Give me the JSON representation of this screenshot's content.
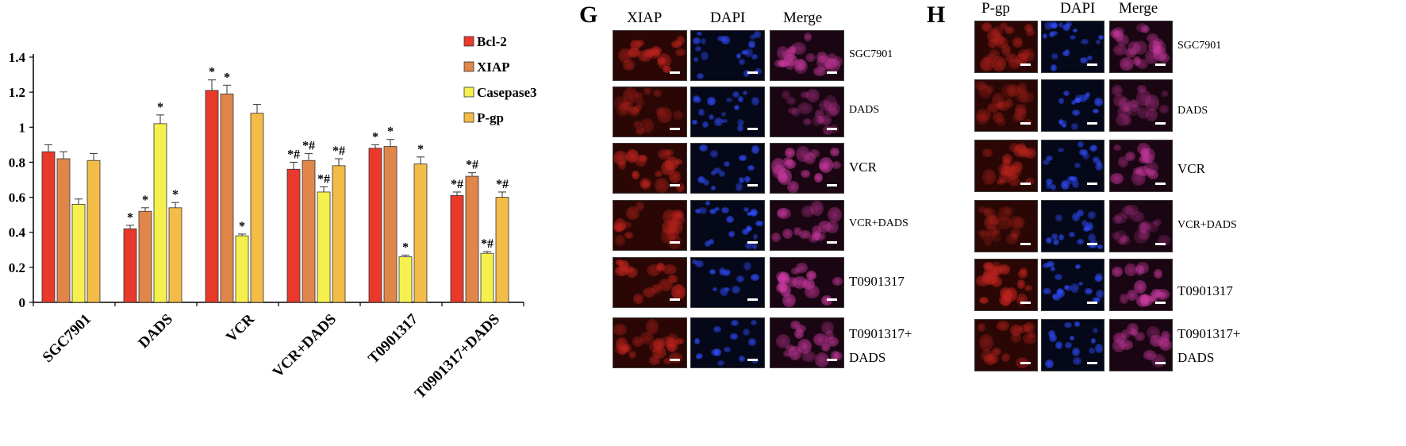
{
  "chart_data": {
    "type": "bar",
    "categories": [
      "SGC7901",
      "DADS",
      "VCR",
      "VCR+DADS",
      "T0901317",
      "T0901317+DADS"
    ],
    "series": [
      {
        "name": "Bcl-2",
        "color": "#e8392b",
        "values": [
          0.86,
          0.42,
          1.21,
          0.76,
          0.88,
          0.61
        ],
        "errors": [
          0.04,
          0.02,
          0.06,
          0.04,
          0.02,
          0.02
        ],
        "marks": [
          "",
          "*",
          "*",
          "*#",
          "*",
          "*#"
        ]
      },
      {
        "name": "XIAP",
        "color": "#e0864a",
        "values": [
          0.82,
          0.52,
          1.19,
          0.81,
          0.89,
          0.72
        ],
        "errors": [
          0.04,
          0.02,
          0.05,
          0.04,
          0.04,
          0.02
        ],
        "marks": [
          "",
          "*",
          "*",
          "*#",
          "*",
          "*#"
        ]
      },
      {
        "name": "Casepase3",
        "color": "#f6f04e",
        "values": [
          0.56,
          1.02,
          0.38,
          0.63,
          0.26,
          0.28
        ],
        "errors": [
          0.03,
          0.05,
          0.01,
          0.03,
          0.01,
          0.01
        ],
        "marks": [
          "",
          "*",
          "*",
          "*#",
          "*",
          "*#"
        ]
      },
      {
        "name": "P-gp",
        "color": "#f3bb47",
        "values": [
          0.81,
          0.54,
          1.08,
          0.78,
          0.79,
          0.6
        ],
        "errors": [
          0.04,
          0.03,
          0.05,
          0.04,
          0.04,
          0.03
        ],
        "marks": [
          "",
          "*",
          "",
          "*#",
          "*",
          "*#"
        ]
      }
    ],
    "yticks": [
      "0",
      "0.2",
      "0.4",
      "0.6",
      "0.8",
      "1",
      "1.2",
      "1.4"
    ],
    "ylim": [
      0,
      1.4
    ],
    "legend_position": "top-right",
    "title": "",
    "xlabel": "",
    "ylabel": ""
  },
  "panel_g": {
    "letter": "G",
    "columns": [
      "XIAP",
      "DAPI",
      "Merge"
    ],
    "rows": [
      "SGC7901",
      "DADS",
      "VCR",
      "VCR+DADS",
      "T0901317",
      "T0901317+\nDADS"
    ]
  },
  "panel_h": {
    "letter": "H",
    "columns": [
      "P-gp",
      "DAPI",
      "Merge"
    ],
    "rows": [
      "SGC7901",
      "DADS",
      "VCR",
      "VCR+DADS",
      "T0901317",
      "T0901317+\nDADS"
    ]
  },
  "colors": {
    "red_channel": "#c0231e",
    "blue_channel": "#2f4cff",
    "merge_channel": "#c9389e"
  }
}
